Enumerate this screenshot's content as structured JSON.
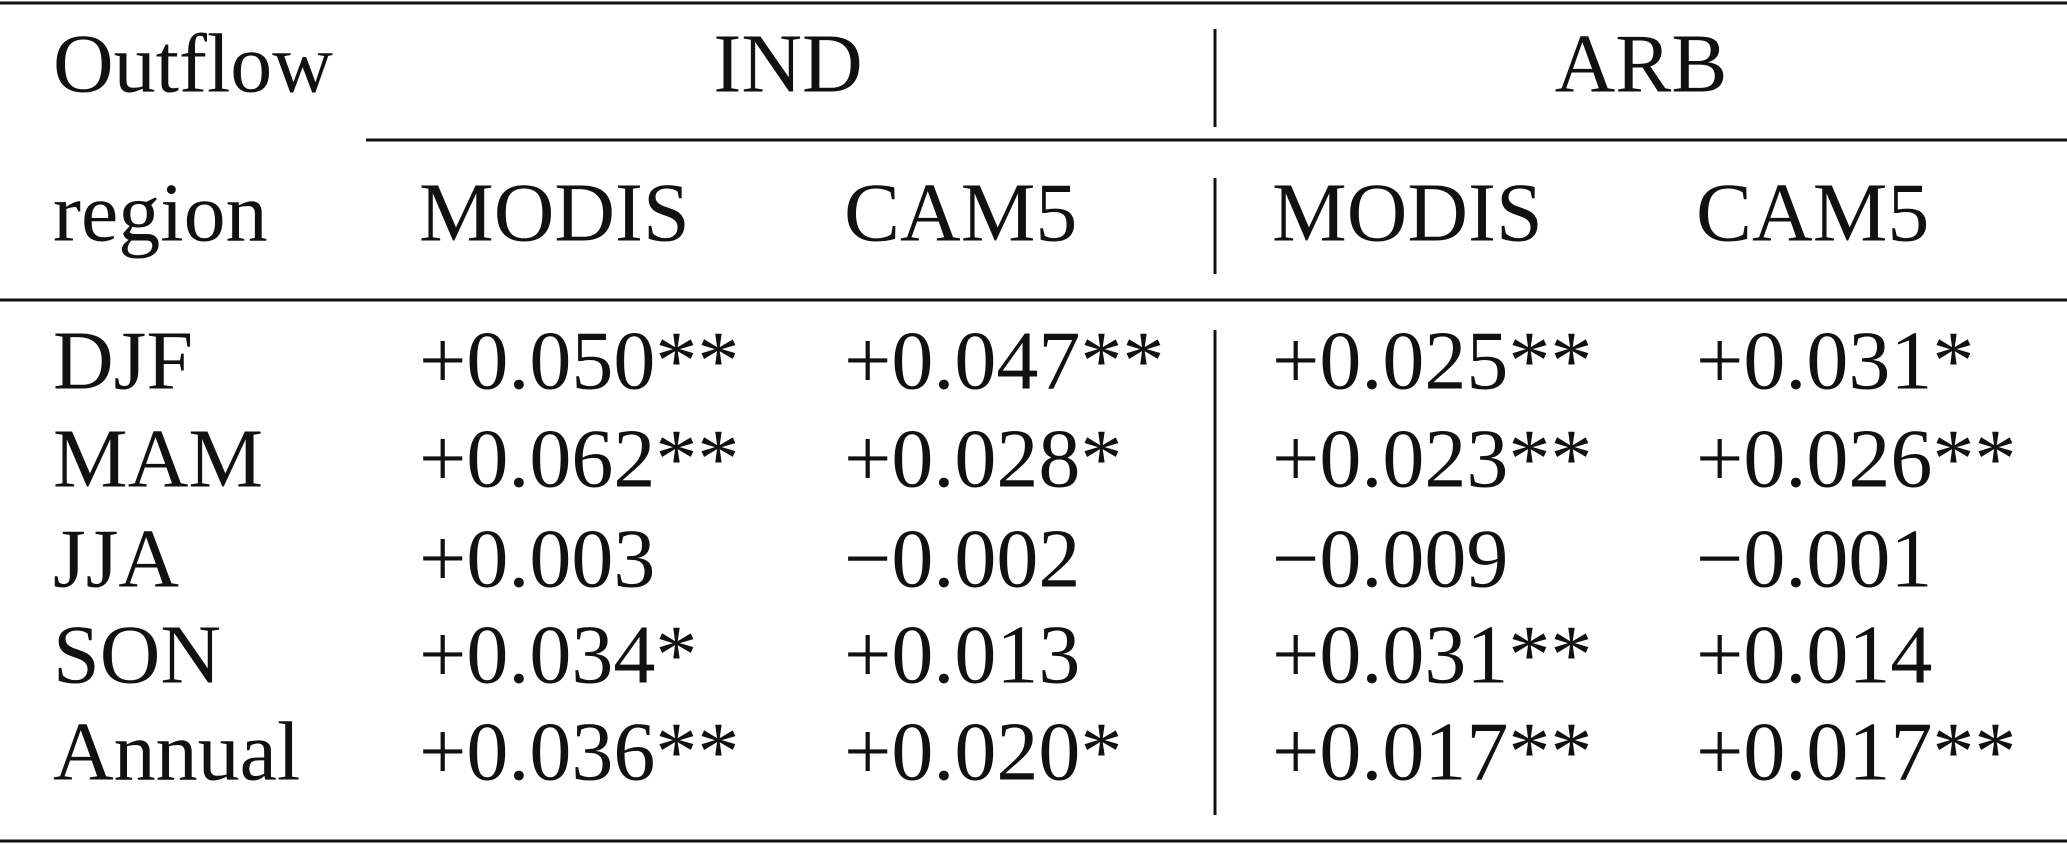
{
  "table": {
    "header": {
      "row_label": [
        "Outflow",
        "region"
      ],
      "groups": [
        "IND",
        "ARB"
      ],
      "columns": [
        "MODIS",
        "CAM5",
        "MODIS",
        "CAM5"
      ]
    },
    "rows": [
      [
        "DJF",
        "+0.050**",
        "+0.047**",
        "+0.025**",
        "+0.031*"
      ],
      [
        "MAM",
        "+0.062**",
        "+0.028*",
        "+0.023**",
        "+0.026**"
      ],
      [
        "JJA",
        "+0.003",
        "−0.002",
        "−0.009",
        "−0.001"
      ],
      [
        "SON",
        "+0.034*",
        "+0.013",
        "+0.031**",
        "+0.014"
      ],
      [
        "Annual",
        "+0.036**",
        "+0.020*",
        "+0.017**",
        "+0.017**"
      ]
    ]
  }
}
